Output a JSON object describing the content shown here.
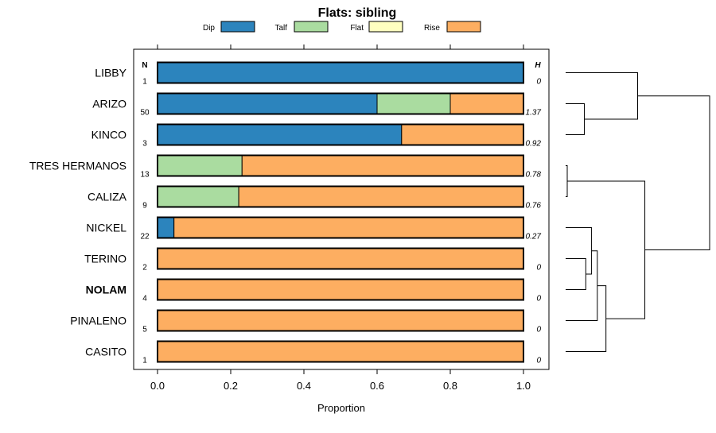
{
  "chart_data": {
    "type": "bar",
    "orientation": "horizontal",
    "stacked": true,
    "title": "Flats: sibling",
    "xlabel": "Proportion",
    "ylabel": "",
    "xlim": [
      0,
      1
    ],
    "xticks": [
      "0.0",
      "0.2",
      "0.4",
      "0.6",
      "0.8",
      "1.0"
    ],
    "xtick_values": [
      0,
      0.2,
      0.4,
      0.6,
      0.8,
      1.0
    ],
    "legend_position": "top",
    "n_header": "N",
    "h_header": "H",
    "categories": [
      "LIBBY",
      "ARIZO",
      "KINCO",
      "TRES HERMANOS",
      "CALIZA",
      "NICKEL",
      "TERINO",
      "NOLAM",
      "PINALENO",
      "CASITO"
    ],
    "bold_categories": [
      "NOLAM"
    ],
    "n_values": [
      "1",
      "50",
      "3",
      "13",
      "9",
      "22",
      "2",
      "4",
      "5",
      "1"
    ],
    "h_values": [
      "0",
      "1.37",
      "0.92",
      "0.78",
      "0.76",
      "0.27",
      "0",
      "0",
      "0",
      "0"
    ],
    "series": [
      {
        "name": "Dip",
        "color": "#2c84bd",
        "values": [
          1.0,
          0.6,
          0.667,
          0.0,
          0.0,
          0.045,
          0.0,
          0.0,
          0.0,
          0.0
        ]
      },
      {
        "name": "Talf",
        "color": "#aadca0",
        "values": [
          0.0,
          0.2,
          0.0,
          0.231,
          0.222,
          0.0,
          0.0,
          0.0,
          0.0,
          0.0
        ]
      },
      {
        "name": "Flat",
        "color": "#ffffc0",
        "values": [
          0.0,
          0.0,
          0.0,
          0.0,
          0.0,
          0.0,
          0.0,
          0.0,
          0.0,
          0.0
        ]
      },
      {
        "name": "Rise",
        "color": "#fdae61",
        "values": [
          0.0,
          0.2,
          0.333,
          0.769,
          0.778,
          0.955,
          1.0,
          1.0,
          1.0,
          1.0
        ]
      }
    ],
    "dendrogram": {
      "merge_heights": {
        "h1": 0.5,
        "h2": 0.14,
        "h3": 0.18,
        "h4": 0.22,
        "h5": 0.28,
        "h6": 1.0,
        "h7": 0.55,
        "h8": 0.4,
        "h9": 0.13
      }
    }
  }
}
